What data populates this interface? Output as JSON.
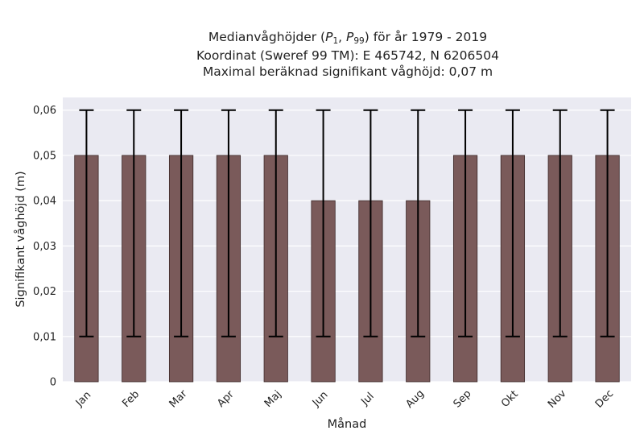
{
  "chart_data": {
    "type": "bar",
    "title_lines": [
      "Medianvåghöjder (P1, P99) för år 1979 - 2019",
      "Koordinat (Sweref 99 TM): E 465742, N 6206504",
      "Maximal beräknad signifikant våghöjd: 0,07 m"
    ],
    "xlabel": "Månad",
    "ylabel": "Signifikant våghöjd (m)",
    "categories": [
      "Jan",
      "Feb",
      "Mar",
      "Apr",
      "Maj",
      "Jun",
      "Jul",
      "Aug",
      "Sep",
      "Okt",
      "Nov",
      "Dec"
    ],
    "values": [
      0.05,
      0.05,
      0.05,
      0.05,
      0.05,
      0.04,
      0.04,
      0.04,
      0.05,
      0.05,
      0.05,
      0.05
    ],
    "error_low": [
      0.01,
      0.01,
      0.01,
      0.01,
      0.01,
      0.01,
      0.01,
      0.01,
      0.01,
      0.01,
      0.01,
      0.01
    ],
    "error_high": [
      0.06,
      0.06,
      0.06,
      0.06,
      0.06,
      0.06,
      0.06,
      0.06,
      0.06,
      0.06,
      0.06,
      0.06
    ],
    "yticks": [
      0,
      0.01,
      0.02,
      0.03,
      0.04,
      0.05,
      0.06
    ],
    "ytick_labels": [
      "0",
      "0,01",
      "0,02",
      "0,03",
      "0,04",
      "0,05",
      "0,06"
    ],
    "ylim": [
      0,
      0.0628
    ],
    "grid": true,
    "colors": {
      "bar": "#7a5a5a",
      "bar_edge": "#3d2a2a",
      "error_bar": "#000000",
      "plot_background": "#eaeaf2",
      "grid": "#ffffff"
    }
  }
}
